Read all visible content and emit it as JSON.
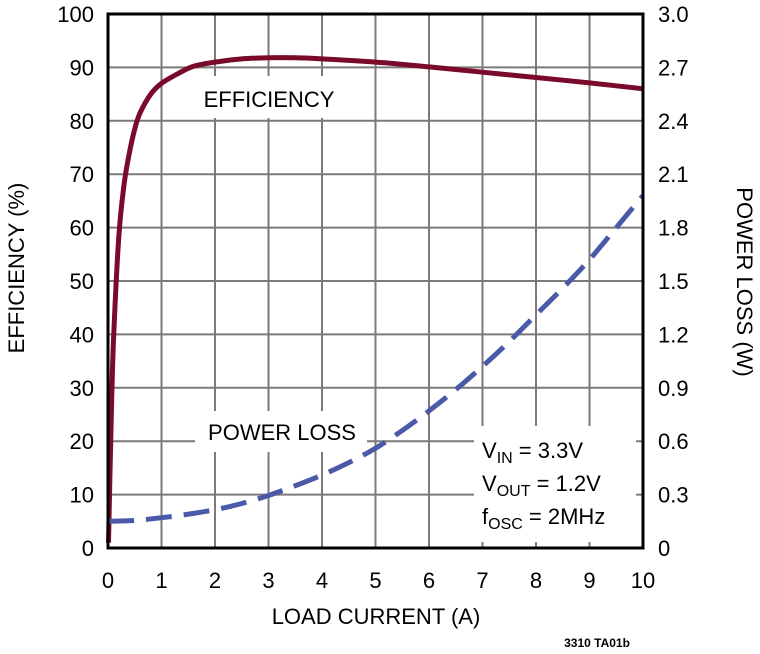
{
  "chart_data": {
    "type": "line",
    "title": "",
    "xlabel": "LOAD CURRENT (A)",
    "ylabel": "EFFICIENCY (%)",
    "y2label": "POWER LOSS (W)",
    "xlim": [
      0,
      10
    ],
    "ylim": [
      0,
      100
    ],
    "y2lim": [
      0,
      3.0
    ],
    "grid": true,
    "x_ticks": [
      "0",
      "1",
      "2",
      "3",
      "4",
      "5",
      "6",
      "7",
      "8",
      "9",
      "10"
    ],
    "y_ticks": [
      "0",
      "10",
      "20",
      "30",
      "40",
      "50",
      "60",
      "70",
      "80",
      "90",
      "100"
    ],
    "y2_ticks": [
      "0",
      "0.3",
      "0.6",
      "0.9",
      "1.2",
      "1.5",
      "1.8",
      "2.1",
      "2.4",
      "2.7",
      "3.0"
    ],
    "series": [
      {
        "name": "EFFICIENCY",
        "axis": "left",
        "color": "#7a0a2a",
        "style": "solid",
        "x": [
          0.01,
          0.05,
          0.1,
          0.2,
          0.3,
          0.4,
          0.5,
          0.6,
          0.8,
          1.0,
          1.3,
          1.6,
          2.0,
          2.5,
          3.0,
          3.5,
          4.0,
          5.0,
          6.0,
          7.0,
          8.0,
          9.0,
          10.0
        ],
        "values": [
          1,
          20,
          38,
          58,
          68,
          74,
          78.5,
          81.5,
          85,
          87,
          88.8,
          90.2,
          91,
          91.6,
          91.8,
          91.8,
          91.6,
          91,
          90.1,
          89.1,
          88.1,
          87.1,
          86
        ]
      },
      {
        "name": "POWER LOSS",
        "axis": "right",
        "color": "#4a5aa8",
        "style": "dashed",
        "x": [
          0,
          0.5,
          1,
          1.5,
          2,
          2.5,
          3,
          3.5,
          4,
          4.5,
          5,
          5.5,
          6,
          6.5,
          7,
          7.5,
          8,
          8.5,
          9,
          9.5,
          10
        ],
        "values": [
          0.15,
          0.155,
          0.17,
          0.19,
          0.215,
          0.25,
          0.295,
          0.35,
          0.41,
          0.48,
          0.56,
          0.66,
          0.77,
          0.89,
          1.02,
          1.16,
          1.31,
          1.46,
          1.62,
          1.8,
          1.98
        ]
      }
    ],
    "annotations": [
      {
        "text": "EFFICIENCY",
        "x": 3.0,
        "y_pct": 84
      },
      {
        "text": "POWER LOSS",
        "x": 3.0,
        "y_pct": 21.5
      }
    ],
    "conditions": [
      {
        "main": "V",
        "sub": "IN",
        "rest": " = 3.3V"
      },
      {
        "main": "V",
        "sub": "OUT",
        "rest": " = 1.2V"
      },
      {
        "main": "f",
        "sub": "OSC",
        "rest": " = 2MHz"
      }
    ],
    "footer": "3310 TA01b"
  }
}
